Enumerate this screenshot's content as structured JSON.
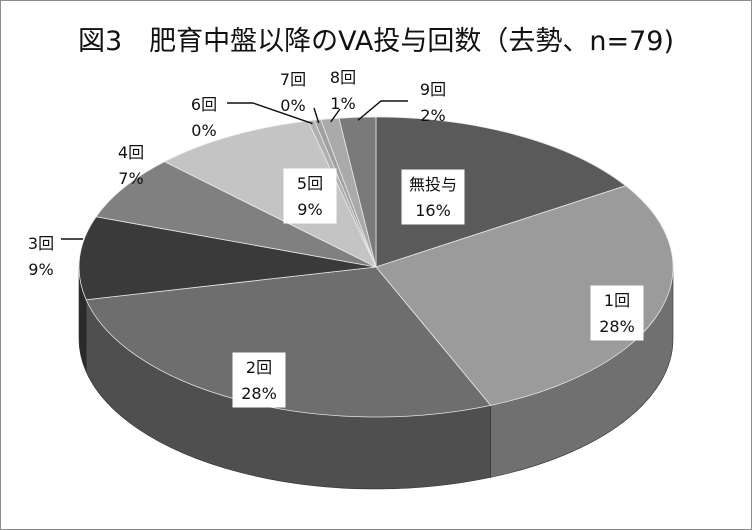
{
  "chart_data": {
    "type": "pie",
    "title": "図3　肥育中盤以降のVA投与回数（去勢、n=79)",
    "variant": "3d-exploded-perspective",
    "slices": [
      {
        "label": "無投与",
        "percent": "16%",
        "value": 16,
        "color": "#5a5a5a"
      },
      {
        "label": "1回",
        "percent": "28%",
        "value": 28,
        "color": "#9b9b9b"
      },
      {
        "label": "2回",
        "percent": "28%",
        "value": 28,
        "color": "#6e6e6e"
      },
      {
        "label": "3回",
        "percent": "9%",
        "value": 9,
        "color": "#3a3a3a"
      },
      {
        "label": "4回",
        "percent": "7%",
        "value": 7,
        "color": "#808080"
      },
      {
        "label": "5回",
        "percent": "9%",
        "value": 9,
        "color": "#c4c4c4"
      },
      {
        "label": "6回",
        "percent": "0%",
        "value": 0,
        "color": "#b0b0b0"
      },
      {
        "label": "7回",
        "percent": "0%",
        "value": 0,
        "color": "#a0a0a0"
      },
      {
        "label": "8回",
        "percent": "1%",
        "value": 1,
        "color": "#aaaaaa"
      },
      {
        "label": "9回",
        "percent": "2%",
        "value": 2,
        "color": "#7a7a7a"
      }
    ],
    "legend": "none",
    "grid": false
  }
}
